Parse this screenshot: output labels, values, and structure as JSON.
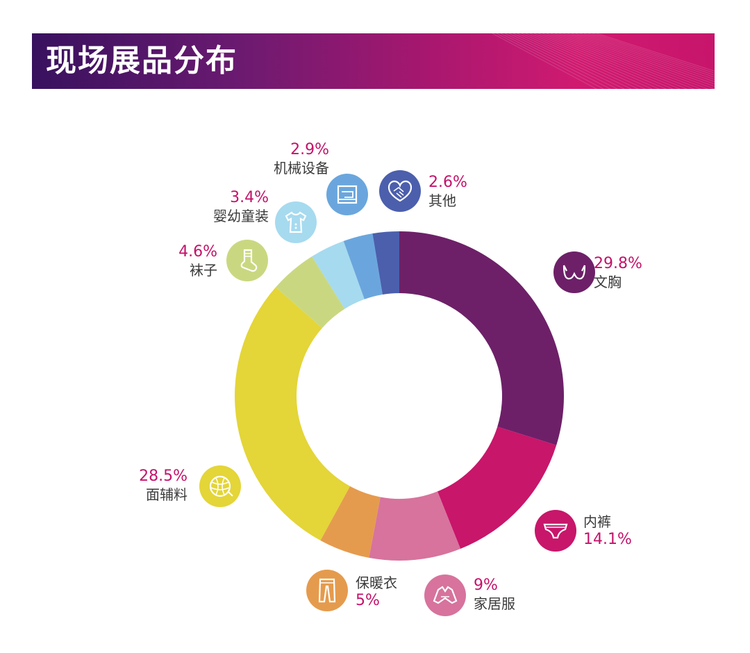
{
  "header": {
    "title": "现场展品分布"
  },
  "colors": {
    "accent": "#c4126a"
  },
  "chart_data": {
    "type": "pie",
    "donut": true,
    "title": "现场展品分布",
    "slices": [
      {
        "label": "文胸",
        "value": 29.8,
        "display": "29.8%",
        "color": "#6d2068",
        "icon": "bra-icon"
      },
      {
        "label": "内裤",
        "value": 14.1,
        "display": "14.1%",
        "color": "#c8166a",
        "icon": "underwear-icon"
      },
      {
        "label": "家居服",
        "value": 9,
        "display": "9%",
        "color": "#d7739d",
        "icon": "loungewear-icon"
      },
      {
        "label": "保暖衣",
        "value": 5,
        "display": "5%",
        "color": "#e59b4d",
        "icon": "thermal-pants-icon"
      },
      {
        "label": "面辅料",
        "value": 28.5,
        "display": "28.5%",
        "color": "#e4d538",
        "icon": "yarn-ball-icon"
      },
      {
        "label": "袜子",
        "value": 4.6,
        "display": "4.6%",
        "color": "#c9d880",
        "icon": "sock-icon"
      },
      {
        "label": "婴幼童装",
        "value": 3.4,
        "display": "3.4%",
        "color": "#a6daef",
        "icon": "baby-clothes-icon"
      },
      {
        "label": "机械设备",
        "value": 2.9,
        "display": "2.9%",
        "color": "#6aa6dd",
        "icon": "sewing-machine-icon"
      },
      {
        "label": "其他",
        "value": 2.6,
        "display": "2.6%",
        "color": "#4b5fad",
        "icon": "handshake-heart-icon"
      }
    ]
  }
}
